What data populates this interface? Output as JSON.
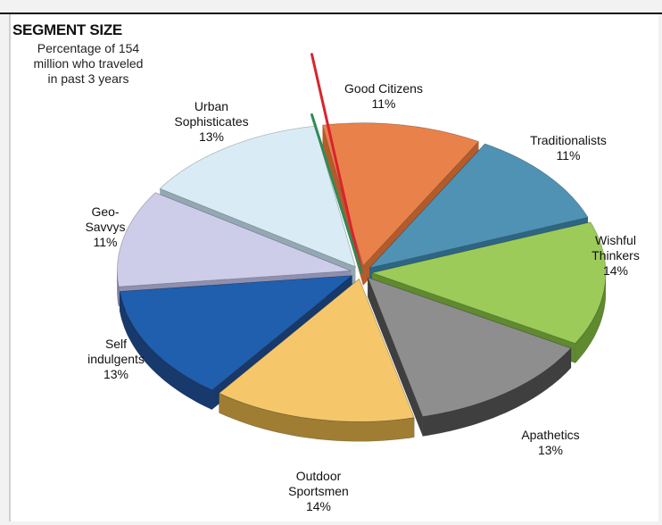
{
  "chart_data": {
    "type": "pie",
    "title": "SEGMENT SIZE",
    "subtitle": "Percentage of 154\nmillion who traveled\nin past 3 years",
    "slices": [
      {
        "name": "Good Citizens",
        "value": 11,
        "label": "11%",
        "color": "#e9814a",
        "side": "#b45b2c"
      },
      {
        "name": "Traditionalists",
        "value": 11,
        "label": "11%",
        "color": "#4f92b4",
        "side": "#2d6584"
      },
      {
        "name": "Wishful Thinkers",
        "value": 14,
        "label": "14%",
        "color": "#9ccb5a",
        "side": "#5f8a2f"
      },
      {
        "name": "Apathetics",
        "value": 13,
        "label": "13%",
        "color": "#8e8e8e",
        "side": "#3f3f3f"
      },
      {
        "name": "Outdoor Sportsmen",
        "value": 14,
        "label": "14%",
        "color": "#f5c76a",
        "side": "#9f7d33"
      },
      {
        "name": "Self indulgents",
        "value": 13,
        "label": "13%",
        "color": "#1f5fae",
        "side": "#17396c"
      },
      {
        "name": "Geo-Savvys",
        "value": 11,
        "label": "11%",
        "color": "#cdcde9",
        "side": "#8f8fb0"
      },
      {
        "name": "Urban Sophisticates",
        "value": 13,
        "label": "13%",
        "color": "#d9ecf5",
        "side": "#93a8b2"
      }
    ],
    "labels": [
      {
        "lines": [
          "Good Citizens"
        ],
        "pct": "11%"
      },
      {
        "lines": [
          "Traditionalists"
        ],
        "pct": "11%"
      },
      {
        "lines": [
          "Wishful",
          "Thinkers"
        ],
        "pct": "14%"
      },
      {
        "lines": [
          "Apathetics"
        ],
        "pct": "13%"
      },
      {
        "lines": [
          "Outdoor",
          "Sportsmen"
        ],
        "pct": "14%"
      },
      {
        "lines": [
          "Self",
          "indulgents"
        ],
        "pct": "13%"
      },
      {
        "lines": [
          "Geo-",
          "Savvys"
        ],
        "pct": "11%"
      },
      {
        "lines": [
          "Urban",
          "Sophisticates"
        ],
        "pct": "13%"
      }
    ],
    "outlines": [
      {
        "color": "#d9232e",
        "segments": [
          "Geo-Savvys",
          "Urban Sophisticates",
          "Good Citizens",
          "Self indulgents"
        ]
      },
      {
        "color": "#2e8b57",
        "segments": [
          "Geo-Savvys",
          "Urban Sophisticates",
          "Good Citizens",
          "Traditionalists"
        ]
      }
    ]
  }
}
